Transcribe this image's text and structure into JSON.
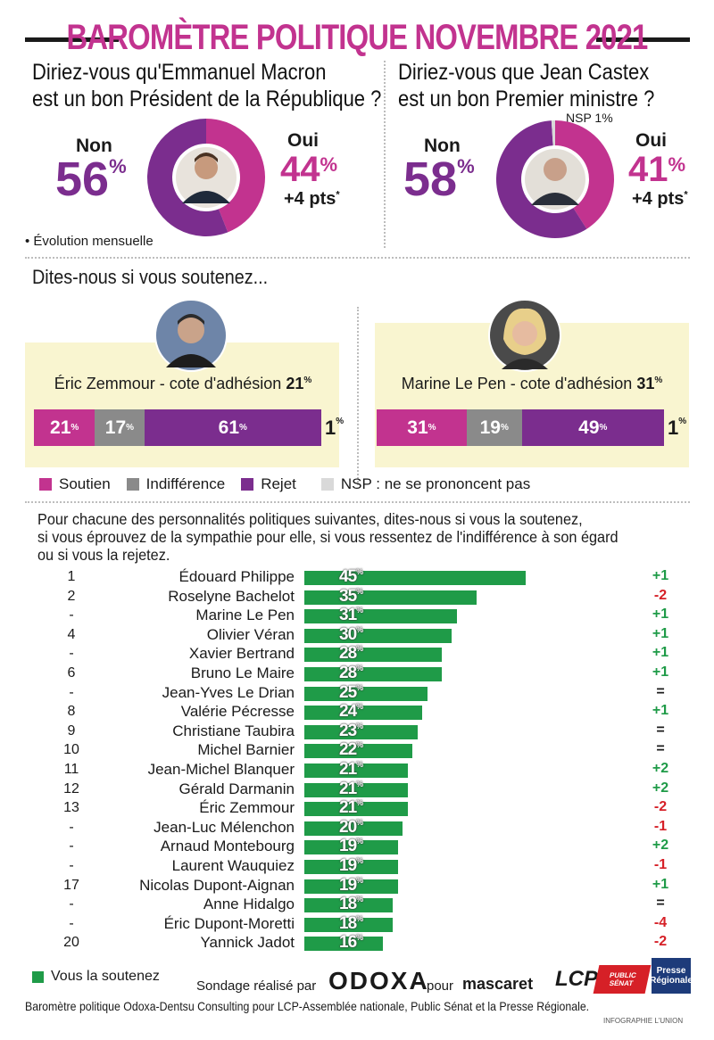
{
  "header": {
    "title": "BAROMÈTRE POLITIQUE NOVEMBRE 2021"
  },
  "macron": {
    "question_line1": "Diriez-vous qu'Emmanuel Macron",
    "question_line2": "est un bon Président de la République ?",
    "non_label": "Non",
    "non_value": "56",
    "oui_label": "Oui",
    "oui_value": "44",
    "change": "+4 pts",
    "note": "• Évolution mensuelle"
  },
  "castex": {
    "question_line1": "Diriez-vous que Jean Castex",
    "question_line2": "est un bon Premier ministre ?",
    "non_label": "Non",
    "non_value": "58",
    "oui_label": "Oui",
    "oui_value": "41",
    "nsp": "NSP 1%",
    "change": "+4 pts"
  },
  "support_section": {
    "heading": "Dites-nous si vous soutenez...",
    "zemmour": {
      "caption": "Éric Zemmour - cote d'adhésion",
      "cote": "21",
      "soutien": "21",
      "indifference": "17",
      "rejet": "61",
      "nsp": "1"
    },
    "lepen": {
      "caption": "Marine Le Pen - cote d'adhésion",
      "cote": "31",
      "soutien": "31",
      "indifference": "19",
      "rejet": "49",
      "nsp": "1"
    }
  },
  "legend": {
    "soutien": "Soutien",
    "indifference": "Indifférence",
    "rejet": "Rejet",
    "nsp": "NSP : ne se prononcent pas"
  },
  "intro": {
    "line1": "Pour chacune des personnalités politiques suivantes, dites-nous si vous la soutenez,",
    "line2": "si vous éprouvez de la sympathie pour elle, si vous ressentez de l'indifférence à son égard",
    "line3": "ou si vous la rejetez."
  },
  "colors": {
    "soutien": "#c2338f",
    "indifference": "#8a8a8a",
    "rejet": "#7b2d8e",
    "nsp": "#d9d9d9",
    "bar": "#1f9b48",
    "up": "#1f9b48",
    "down": "#d62027",
    "panel": "#f9f5d0"
  },
  "chart_data": {
    "type": "bar",
    "categories": [
      "Édouard Philippe",
      "Roselyne Bachelot",
      "Marine Le Pen",
      "Olivier Véran",
      "Xavier Bertrand",
      "Bruno Le Maire",
      "Jean-Yves Le Drian",
      "Valérie Pécresse",
      "Christiane Taubira",
      "Michel Barnier",
      "Jean-Michel Blanquer",
      "Gérald Darmanin",
      "Éric Zemmour",
      "Jean-Luc Mélenchon",
      "Arnaud Montebourg",
      "Laurent Wauquiez",
      "Nicolas Dupont-Aignan",
      "Anne Hidalgo",
      "Éric Dupont-Moretti",
      "Yannick Jadot"
    ],
    "ranks": [
      "1",
      "2",
      "-",
      "4",
      "-",
      "6",
      "-",
      "8",
      "9",
      "10",
      "11",
      "12",
      "13",
      "-",
      "-",
      "-",
      "17",
      "-",
      "-",
      "20"
    ],
    "values": [
      45,
      35,
      31,
      30,
      28,
      28,
      25,
      24,
      23,
      22,
      21,
      21,
      21,
      20,
      19,
      19,
      19,
      18,
      18,
      16
    ],
    "changes": [
      "+1",
      "-2",
      "+1",
      "+1",
      "+1",
      "+1",
      "=",
      "+1",
      "=",
      "=",
      "+2",
      "+2",
      "-2",
      "-1",
      "+2",
      "-1",
      "+1",
      "=",
      "-4",
      "-2"
    ],
    "legend": "Vous la soutenez",
    "xlim": [
      0,
      100
    ]
  },
  "footer": {
    "sondage": "Sondage réalisé par",
    "pour": "pour",
    "logos": [
      "ODOXA",
      "mascaret",
      "LCP",
      "PUBLIC SÉNAT",
      "Presse Régionale"
    ],
    "source": "Baromètre politique Odoxa-Dentsu Consulting pour LCP-Assemblée nationale,  Public Sénat et la Presse Régionale.",
    "credit": "INFOGRAPHIE L'UNION"
  }
}
